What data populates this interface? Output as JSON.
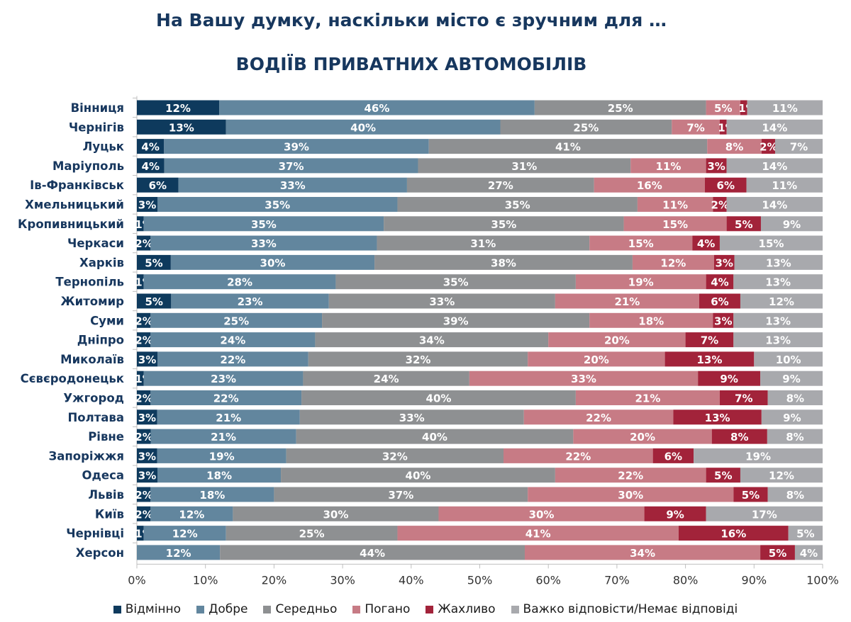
{
  "chart_data": {
    "type": "bar",
    "orientation": "horizontal",
    "stacked": true,
    "title": "На Вашу думку, наскільки місто є зручним для …",
    "subtitle": "ВОДІЇВ ПРИВАТНИХ АВТОМОБІЛІВ",
    "xlim": [
      0,
      100
    ],
    "x_ticks": [
      "0%",
      "10%",
      "20%",
      "30%",
      "40%",
      "50%",
      "60%",
      "70%",
      "80%",
      "90%",
      "100%"
    ],
    "legend_position": "bottom",
    "grid": false,
    "categories": [
      "Вінниця",
      "Чернігів",
      "Луцьк",
      "Маріуполь",
      "Ів-Франківськ",
      "Хмельницький",
      "Кропивницький",
      "Черкаси",
      "Харків",
      "Тернопіль",
      "Житомир",
      "Суми",
      "Дніпро",
      "Миколаїв",
      "Сєвєродонецьк",
      "Ужгород",
      "Полтава",
      "Рівне",
      "Запоріжжя",
      "Одеса",
      "Львів",
      "Київ",
      "Чернівці",
      "Херсон"
    ],
    "series": [
      {
        "name": "Відмінно",
        "color": "#0e3a5d",
        "values": [
          12,
          13,
          4,
          4,
          6,
          3,
          1,
          2,
          5,
          1,
          5,
          2,
          2,
          3,
          1,
          2,
          3,
          2,
          3,
          3,
          2,
          2,
          1,
          0
        ]
      },
      {
        "name": "Добре",
        "color": "#62869e",
        "values": [
          46,
          40,
          39,
          37,
          33,
          35,
          35,
          33,
          30,
          28,
          23,
          25,
          24,
          22,
          23,
          22,
          21,
          21,
          19,
          18,
          18,
          12,
          12,
          12
        ]
      },
      {
        "name": "Середньо",
        "color": "#8e9092",
        "values": [
          25,
          25,
          41,
          31,
          27,
          35,
          35,
          31,
          38,
          35,
          33,
          39,
          34,
          32,
          24,
          40,
          33,
          40,
          32,
          40,
          37,
          30,
          25,
          44
        ]
      },
      {
        "name": "Погано",
        "color": "#c77b85",
        "values": [
          5,
          7,
          8,
          11,
          16,
          11,
          15,
          15,
          12,
          19,
          21,
          18,
          20,
          20,
          33,
          21,
          22,
          20,
          22,
          22,
          30,
          30,
          41,
          34
        ]
      },
      {
        "name": "Жахливо",
        "color": "#a2233a",
        "values": [
          1,
          1,
          2,
          3,
          6,
          2,
          5,
          4,
          3,
          4,
          6,
          3,
          7,
          13,
          9,
          7,
          13,
          8,
          6,
          5,
          5,
          9,
          16,
          5
        ]
      },
      {
        "name": "Важко відповісти/Немає відповіді",
        "color": "#a8a9ad",
        "values": [
          11,
          14,
          7,
          14,
          11,
          14,
          9,
          15,
          13,
          13,
          12,
          13,
          13,
          10,
          9,
          8,
          9,
          8,
          19,
          12,
          8,
          17,
          5,
          4
        ]
      }
    ]
  }
}
